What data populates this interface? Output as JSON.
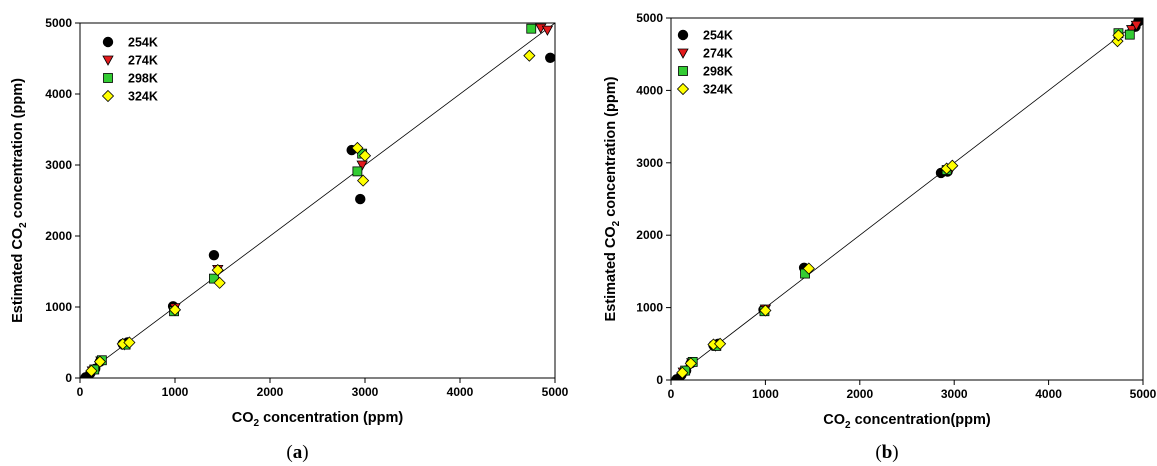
{
  "chart_data": [
    {
      "panel_label": {
        "open": "(",
        "letter": "a",
        "close": ")"
      },
      "type": "scatter",
      "xlabel": {
        "pre": "CO",
        "sub": "2",
        "post": " concentration (ppm)"
      },
      "ylabel": {
        "pre": "Estimated CO",
        "sub": "2",
        "post": " concentration (ppm)"
      },
      "xlim": [
        0,
        5000
      ],
      "ylim": [
        0,
        5000
      ],
      "xticks": [
        "0",
        "1000",
        "2000",
        "3000",
        "4000",
        "5000"
      ],
      "yticks": [
        "0",
        "1000",
        "2000",
        "3000",
        "4000",
        "5000"
      ],
      "reference_line": [
        [
          50,
          50
        ],
        [
          5000,
          5000
        ]
      ],
      "legend_position": "top-left",
      "series": [
        {
          "name": "254K",
          "marker": "circle",
          "color": "#000000",
          "points": [
            [
              60,
              10
            ],
            [
              110,
              70
            ],
            [
              160,
              130
            ],
            [
              210,
              230
            ],
            [
              450,
              480
            ],
            [
              500,
              500
            ],
            [
              980,
              1010
            ],
            [
              1410,
              1730
            ],
            [
              2860,
              3210
            ],
            [
              2950,
              2520
            ],
            [
              4950,
              4510
            ]
          ]
        },
        {
          "name": "274K",
          "marker": "triangle-down",
          "color": "#e31a1c",
          "points": [
            [
              130,
              100
            ],
            [
              220,
              240
            ],
            [
              470,
              470
            ],
            [
              1000,
              990
            ],
            [
              1450,
              1530
            ],
            [
              2970,
              3000
            ],
            [
              4850,
              4930
            ],
            [
              4920,
              4900
            ]
          ]
        },
        {
          "name": "298K",
          "marker": "square",
          "color": "#33cc33",
          "points": [
            [
              150,
              120
            ],
            [
              230,
              250
            ],
            [
              480,
              470
            ],
            [
              990,
              940
            ],
            [
              1410,
              1400
            ],
            [
              2920,
              2910
            ],
            [
              2970,
              3160
            ],
            [
              4750,
              4920
            ]
          ]
        },
        {
          "name": "324K",
          "marker": "diamond",
          "color": "#ffff00",
          "points": [
            [
              120,
              100
            ],
            [
              210,
              230
            ],
            [
              450,
              480
            ],
            [
              520,
              500
            ],
            [
              1000,
              960
            ],
            [
              1450,
              1520
            ],
            [
              1470,
              1340
            ],
            [
              2920,
              3240
            ],
            [
              2980,
              2780
            ],
            [
              3000,
              3130
            ],
            [
              4730,
              4540
            ]
          ]
        }
      ]
    },
    {
      "panel_label": {
        "open": "(",
        "letter": "b",
        "close": ")"
      },
      "type": "scatter",
      "xlabel": {
        "pre": "CO",
        "sub": "2",
        "post": " concentration(ppm)"
      },
      "ylabel": {
        "pre": "Estimated CO",
        "sub": "2",
        "post": " concentration (ppm)"
      },
      "xlim": [
        0,
        5000
      ],
      "ylim": [
        0,
        5000
      ],
      "xticks": [
        "0",
        "1000",
        "2000",
        "3000",
        "4000",
        "5000"
      ],
      "yticks": [
        "0",
        "1000",
        "2000",
        "3000",
        "4000",
        "5000"
      ],
      "reference_line": [
        [
          50,
          50
        ],
        [
          5000,
          5000
        ]
      ],
      "legend_position": "top-left",
      "series": [
        {
          "name": "254K",
          "marker": "circle",
          "color": "#000000",
          "points": [
            [
              60,
              10
            ],
            [
              110,
              70
            ],
            [
              160,
              130
            ],
            [
              210,
              230
            ],
            [
              450,
              480
            ],
            [
              500,
              500
            ],
            [
              980,
              970
            ],
            [
              1410,
              1550
            ],
            [
              2860,
              2860
            ],
            [
              2930,
              2880
            ],
            [
              4920,
              4880
            ],
            [
              4950,
              4950
            ]
          ]
        },
        {
          "name": "274K",
          "marker": "triangle-down",
          "color": "#e31a1c",
          "points": [
            [
              130,
              110
            ],
            [
              220,
              240
            ],
            [
              470,
              470
            ],
            [
              1000,
              980
            ],
            [
              1450,
              1500
            ],
            [
              2970,
              2920
            ],
            [
              4880,
              4840
            ],
            [
              4930,
              4900
            ]
          ]
        },
        {
          "name": "298K",
          "marker": "square",
          "color": "#33cc33",
          "points": [
            [
              150,
              130
            ],
            [
              230,
              250
            ],
            [
              480,
              470
            ],
            [
              990,
              950
            ],
            [
              1420,
              1470
            ],
            [
              2920,
              2900
            ],
            [
              4740,
              4790
            ],
            [
              4860,
              4770
            ]
          ]
        },
        {
          "name": "324K",
          "marker": "diamond",
          "color": "#ffff00",
          "points": [
            [
              120,
              100
            ],
            [
              210,
              230
            ],
            [
              450,
              490
            ],
            [
              520,
              500
            ],
            [
              1000,
              960
            ],
            [
              1460,
              1540
            ],
            [
              2920,
              2920
            ],
            [
              2980,
              2960
            ],
            [
              4730,
              4680
            ],
            [
              4740,
              4760
            ]
          ]
        }
      ]
    }
  ]
}
